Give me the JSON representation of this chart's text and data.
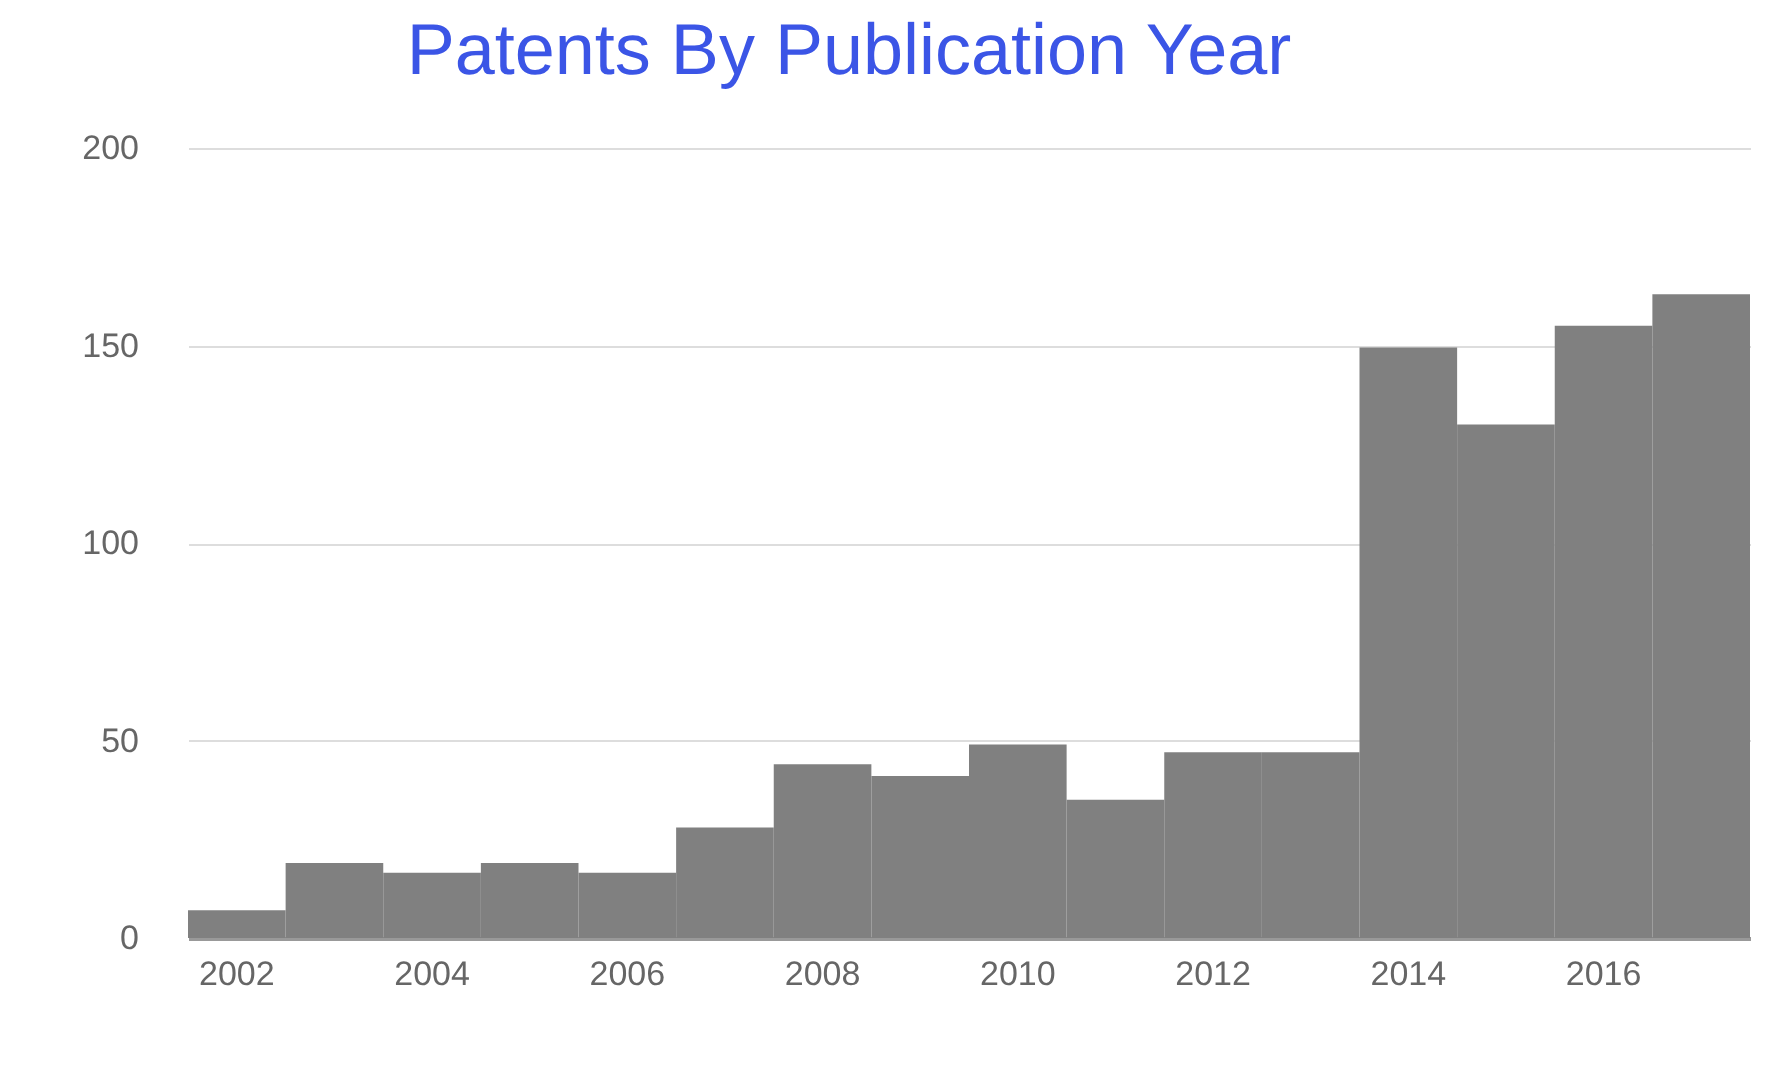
{
  "chart_data": {
    "type": "bar",
    "title": "Patents By Publication Year",
    "categories": [
      "2002",
      null,
      "2004",
      null,
      "2006",
      null,
      "2008",
      null,
      "2010",
      null,
      "2012",
      null,
      "2014",
      null,
      "2016",
      null
    ],
    "values": [
      7,
      19,
      16.5,
      19,
      16.5,
      28,
      44,
      41,
      49,
      35,
      47,
      47,
      149.5,
      130,
      155,
      163
    ],
    "color": "#808080",
    "ylim": [
      0,
      200
    ],
    "yticks": [
      0,
      50,
      100,
      150,
      200
    ],
    "grid": "y"
  }
}
